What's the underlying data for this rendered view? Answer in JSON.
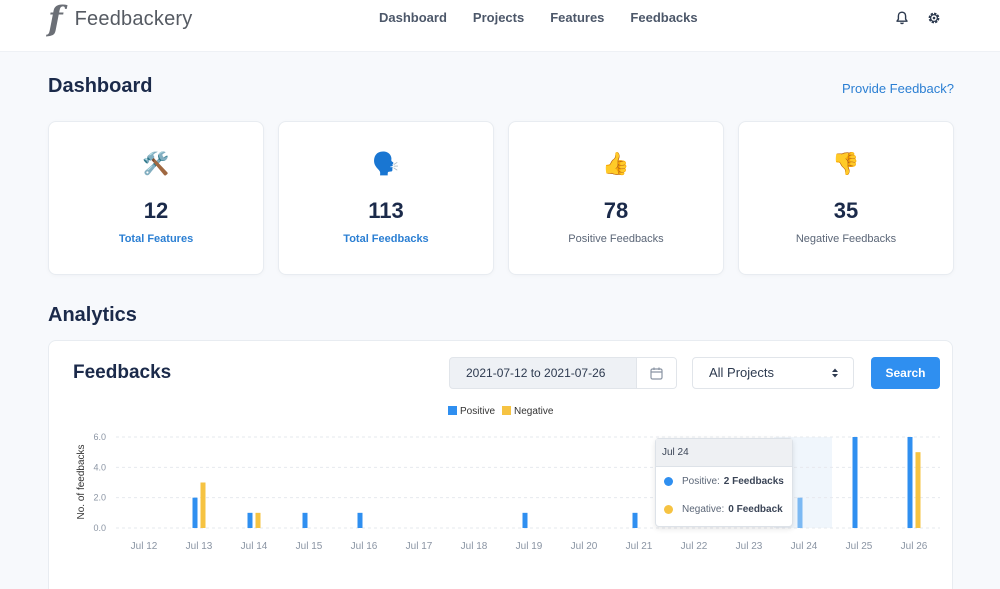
{
  "app": {
    "logo_mark": "f",
    "name": "Feedbackery"
  },
  "nav": [
    {
      "label": "Dashboard"
    },
    {
      "label": "Projects"
    },
    {
      "label": "Features"
    },
    {
      "label": "Feedbacks"
    }
  ],
  "header_icons": {
    "notifications": "bell-icon",
    "settings": "gear-icon"
  },
  "dashboard": {
    "title": "Dashboard",
    "provide_link": "Provide Feedback?"
  },
  "stats": [
    {
      "icon": "🛠️",
      "icon_name": "tools-icon",
      "value": "12",
      "label": "Total Features",
      "is_link": true
    },
    {
      "icon": "🗣️",
      "icon_name": "speaking-head-icon",
      "value": "113",
      "label": "Total Feedbacks",
      "is_link": true
    },
    {
      "icon": "👍",
      "icon_name": "thumbs-up-icon",
      "value": "78",
      "label": "Positive Feedbacks",
      "is_link": false
    },
    {
      "icon": "👎",
      "icon_name": "thumbs-down-icon",
      "value": "35",
      "label": "Negative Feedbacks",
      "is_link": false
    }
  ],
  "analytics": {
    "title": "Analytics",
    "panel_title": "Feedbacks",
    "date_range": "2021-07-12 to 2021-07-26",
    "project_select": "All Projects",
    "search_label": "Search"
  },
  "colors": {
    "positive": "#2f8ff0",
    "negative": "#f6c342",
    "accent": "#2b7fd3"
  },
  "chart_data": {
    "type": "bar",
    "categories": [
      "Jul 12",
      "Jul 13",
      "Jul 14",
      "Jul 15",
      "Jul 16",
      "Jul 17",
      "Jul 18",
      "Jul 19",
      "Jul 20",
      "Jul 21",
      "Jul 22",
      "Jul 23",
      "Jul 24",
      "Jul 25",
      "Jul 26"
    ],
    "series": [
      {
        "name": "Positive",
        "values": [
          0,
          2,
          1,
          1,
          1,
          0,
          0,
          1,
          0,
          1,
          0,
          0,
          2,
          6,
          6
        ]
      },
      {
        "name": "Negative",
        "values": [
          0,
          3,
          1,
          0,
          0,
          0,
          0,
          0,
          0,
          0,
          0,
          0,
          0,
          0,
          5
        ]
      }
    ],
    "ylabel": "No. of feedbacks",
    "ylim": [
      0,
      6
    ],
    "yticks": [
      "0.0",
      "2.0",
      "4.0",
      "6.0"
    ],
    "grid": true,
    "legend": "top-center",
    "highlighted_category": "Jul 24"
  },
  "tooltip": {
    "title": "Jul 24",
    "rows": [
      {
        "label": "Positive:",
        "value": "2 Feedbacks"
      },
      {
        "label": "Negative:",
        "value": "0 Feedback"
      }
    ]
  }
}
